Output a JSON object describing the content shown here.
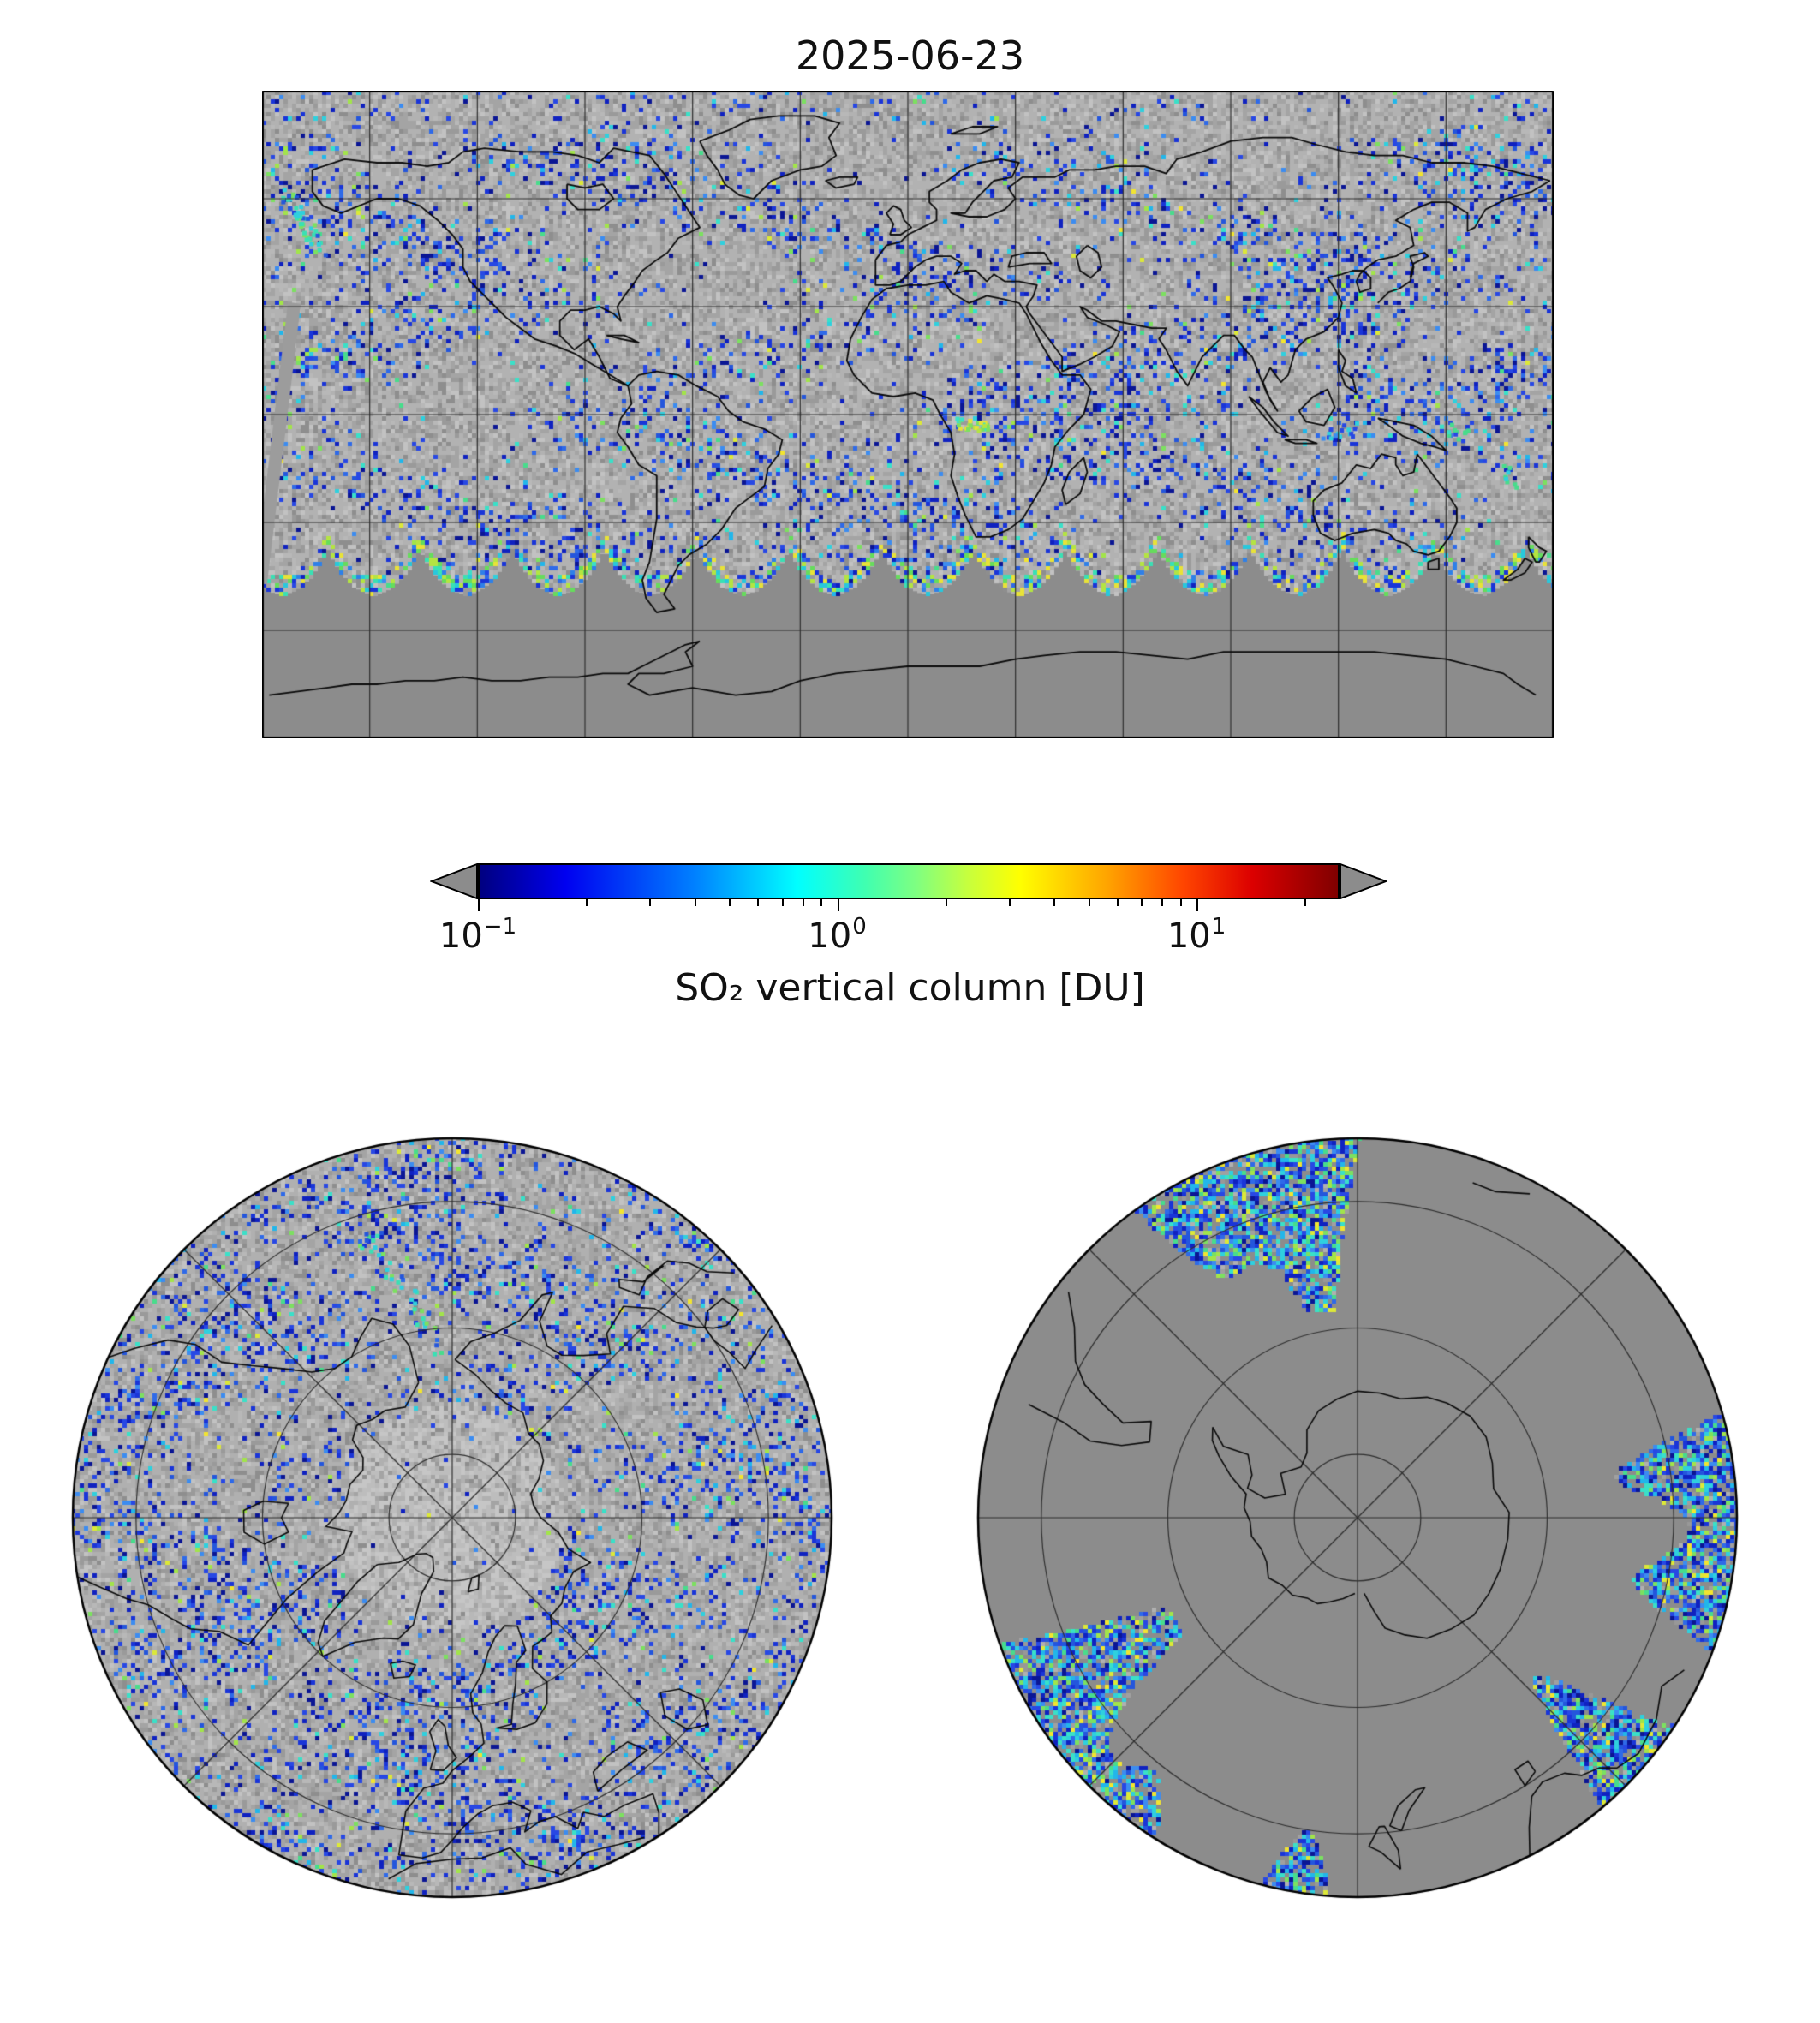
{
  "title": "2025-06-23",
  "colorbar": {
    "label": "SO₂ vertical column [DU]",
    "ticks": [
      {
        "base": "10",
        "exp": "−1",
        "value": 0.1
      },
      {
        "base": "10",
        "exp": "0",
        "value": 1
      },
      {
        "base": "10",
        "exp": "1",
        "value": 10
      }
    ],
    "scale": "log",
    "range": [
      0.1,
      25
    ],
    "under_color": "#8c8c8c",
    "over_color": "#8c8c8c",
    "gradient": [
      "#000080 0%",
      "#0000f0 10%",
      "#0080ff 25%",
      "#00ffff 37%",
      "#40ffb0 45%",
      "#80ff80 51%",
      "#c8ff3c 57%",
      "#ffff00 63%",
      "#ffa500 73%",
      "#ff4500 82%",
      "#dc0000 90%",
      "#800000 100%"
    ]
  },
  "map": {
    "nodata_color": "#8c8c8c",
    "background_color": "#b2b2b2",
    "coast_color": "#0a0a0a",
    "grid_color": "#2f2f2f"
  },
  "chart_data": {
    "type": "heatmap",
    "title": "2025-06-23",
    "colorbar_label": "SO₂ vertical column [DU]",
    "scale": "log",
    "range_du": [
      0.1,
      25
    ],
    "tick_labels": [
      "10⁻¹",
      "10⁰",
      "10¹"
    ],
    "tick_values": [
      0.1,
      1,
      10
    ],
    "units": "DU",
    "panels": [
      "global equirectangular map",
      "north polar view",
      "south polar view"
    ],
    "legend_position": "bottom horizontal colorbar with under/over extension arrows",
    "notes": "Daily satellite SO₂ vertical column; speckled background values ~0.1–0.5 DU over sunlit hemisphere; solid gray = no data (southern polar night, scalloped orbit-swath edge near 40–50°S); enhanced plume over central Africa ~1–3 DU"
  }
}
